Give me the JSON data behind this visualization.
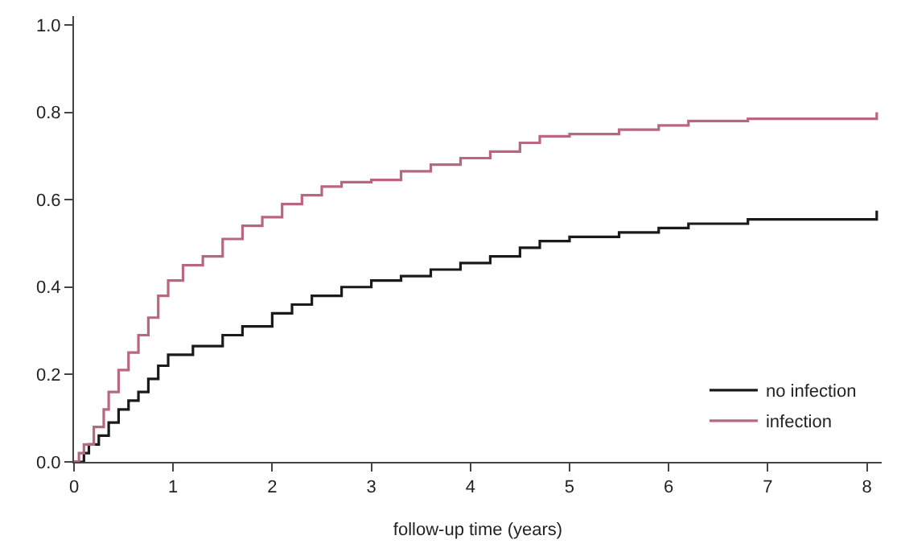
{
  "chart_data": {
    "type": "step",
    "xlabel": "follow-up time (years)",
    "xlim": [
      0,
      8.15
    ],
    "xticks": [
      0,
      1,
      2,
      3,
      4,
      5,
      6,
      7,
      8
    ],
    "ylim": [
      0,
      1.02
    ],
    "yticks": [
      {
        "value": 0,
        "label": "0.0"
      },
      {
        "value": 0.2,
        "label": "0.2"
      },
      {
        "value": 0.4,
        "label": "0.4"
      },
      {
        "value": 0.6,
        "label": "0.6"
      },
      {
        "value": 0.8,
        "label": "0.8"
      },
      {
        "value": 1,
        "label": "1.0"
      }
    ],
    "grid": false,
    "legend": "bottom right",
    "marker": "none",
    "line_style": "solid",
    "series": [
      {
        "name": "no infection",
        "color": "#1a1a1a",
        "x": [
          0,
          0.1,
          0.15,
          0.25,
          0.35,
          0.45,
          0.55,
          0.65,
          0.75,
          0.85,
          0.95,
          1.2,
          1.5,
          1.7,
          2.0,
          2.2,
          2.4,
          2.7,
          3.0,
          3.3,
          3.6,
          3.9,
          4.2,
          4.5,
          4.7,
          5.0,
          5.5,
          5.9,
          6.2,
          6.8,
          8.1,
          8.1
        ],
        "values": [
          0,
          0.02,
          0.04,
          0.06,
          0.09,
          0.12,
          0.14,
          0.16,
          0.19,
          0.22,
          0.245,
          0.265,
          0.29,
          0.31,
          0.34,
          0.36,
          0.38,
          0.4,
          0.415,
          0.425,
          0.44,
          0.455,
          0.47,
          0.49,
          0.505,
          0.515,
          0.525,
          0.535,
          0.545,
          0.555,
          0.555,
          0.575
        ]
      },
      {
        "name": "infection",
        "color": "#b8687e",
        "x": [
          0,
          0.05,
          0.1,
          0.2,
          0.3,
          0.35,
          0.45,
          0.55,
          0.65,
          0.75,
          0.85,
          0.95,
          1.1,
          1.3,
          1.5,
          1.7,
          1.9,
          2.1,
          2.3,
          2.5,
          2.7,
          3.0,
          3.3,
          3.6,
          3.9,
          4.2,
          4.5,
          4.7,
          5.0,
          5.5,
          5.9,
          6.2,
          6.8,
          8.1,
          8.1
        ],
        "values": [
          0,
          0.02,
          0.04,
          0.08,
          0.12,
          0.16,
          0.21,
          0.25,
          0.29,
          0.33,
          0.38,
          0.415,
          0.45,
          0.47,
          0.51,
          0.54,
          0.56,
          0.59,
          0.61,
          0.63,
          0.64,
          0.645,
          0.665,
          0.68,
          0.695,
          0.71,
          0.73,
          0.745,
          0.75,
          0.76,
          0.77,
          0.78,
          0.785,
          0.785,
          0.8
        ]
      }
    ]
  }
}
